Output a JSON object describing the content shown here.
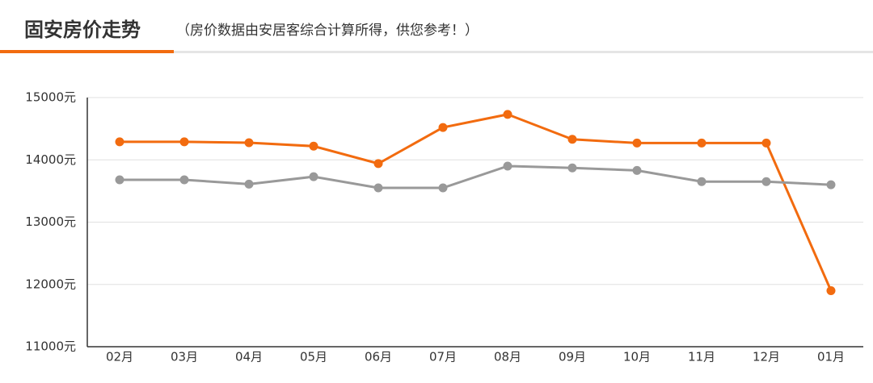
{
  "chart_data": {
    "type": "line",
    "title": "固安房价走势",
    "subtitle": "（房价数据由安居客综合计算所得，供您参考！）",
    "categories": [
      "02月",
      "03月",
      "04月",
      "05月",
      "06月",
      "07月",
      "08月",
      "09月",
      "10月",
      "11月",
      "12月",
      "01月"
    ],
    "series": [
      {
        "color": "#f26b0f",
        "values": [
          14290,
          14290,
          14275,
          14220,
          13940,
          14520,
          14730,
          14330,
          14270,
          14270,
          14270,
          11900
        ]
      },
      {
        "color": "#999999",
        "values": [
          13680,
          13680,
          13610,
          13730,
          13550,
          13550,
          13900,
          13870,
          13830,
          13650,
          13650,
          13600
        ]
      }
    ],
    "ylim": [
      11000,
      15000
    ],
    "yticks": [
      {
        "value": 11000,
        "label": "11000元"
      },
      {
        "value": 12000,
        "label": "12000元"
      },
      {
        "value": 13000,
        "label": "13000元"
      },
      {
        "value": 14000,
        "label": "14000元"
      },
      {
        "value": 15000,
        "label": "15000元"
      }
    ],
    "grid": true
  }
}
